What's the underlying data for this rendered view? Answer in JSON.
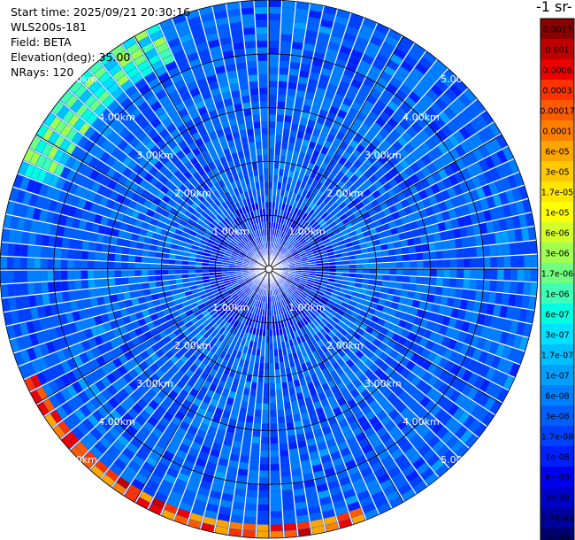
{
  "header": {
    "start_time": "Start time: 2025/09/21 20:30:16",
    "instrument": "WLS200s-181",
    "field": "Field: BETA",
    "elevation": "Elevation(deg): 35.00",
    "nrays": "NRays: 120"
  },
  "colorbar": {
    "units_label": "-1 sr-",
    "ticks": [
      "0.0017",
      "0.001",
      "0.0006",
      "0.0003",
      "0.00017",
      "0.0001",
      "6e-05",
      "3e-05",
      "1.7e-05",
      "1e-05",
      "6e-06",
      "3e-06",
      "1.7e-06",
      "1e-06",
      "6e-07",
      "3e-07",
      "1.7e-07",
      "1e-07",
      "6e-08",
      "3e-08",
      "1.7e-08",
      "1e-08",
      "6e-09",
      "3e-09",
      "1.7e-09",
      "1e-09"
    ],
    "colors": [
      "#8b0000",
      "#c00000",
      "#ee0000",
      "#ff3300",
      "#ff5a00",
      "#ff7f00",
      "#ffa500",
      "#ffc800",
      "#ffe600",
      "#ffff00",
      "#d2ff2a",
      "#a0ff50",
      "#70ff80",
      "#40ffb4",
      "#00ffe0",
      "#00e0ff",
      "#00c0ff",
      "#00a0ff",
      "#0080ff",
      "#0060ff",
      "#0040ff",
      "#0020ff",
      "#0000f0",
      "#0000cc",
      "#0000a0",
      "#000070"
    ]
  },
  "chart_data": {
    "type": "heatmap",
    "projection": "polar PPI",
    "field": "BETA",
    "elevation_deg": 35.0,
    "nrays": 120,
    "range_rings_km": [
      1,
      2,
      3,
      4,
      5
    ],
    "ring_labels": [
      "1.00km",
      "2.00km",
      "3.00km",
      "4.00km",
      "5.00km"
    ],
    "max_range_km": 5.0,
    "colorscale": "log",
    "range_limits": [
      1e-09,
      0.0017
    ],
    "typical_value": 3e-08,
    "features": [
      {
        "description_label": "outer arc",
        "azimuth_deg": [
          160,
          245
        ],
        "range_km": [
          4.7,
          5.0
        ],
        "value": 0.0003
      },
      {
        "description_label": "north-west arc",
        "azimuth_deg": [
          290,
          335
        ],
        "range_km": [
          4.3,
          5.0
        ],
        "value": 1e-06
      }
    ]
  }
}
